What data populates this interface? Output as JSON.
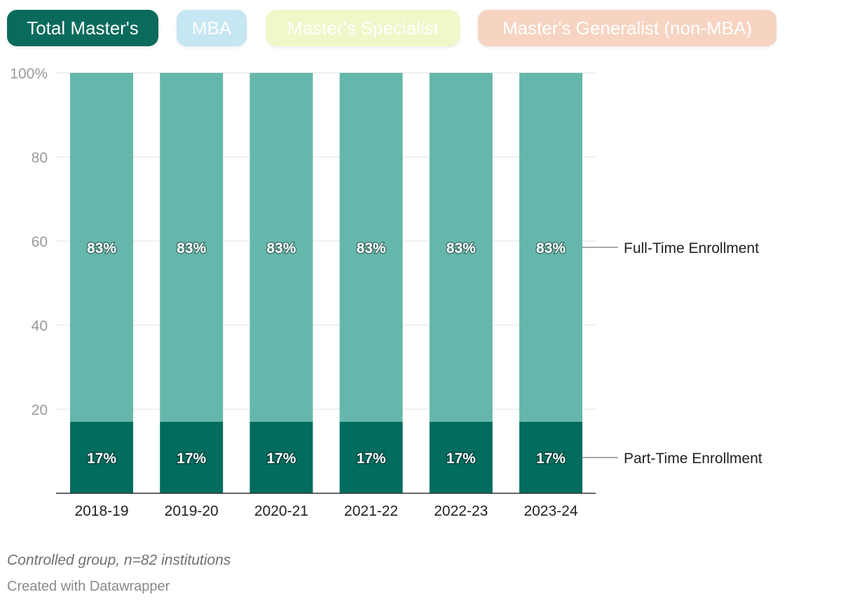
{
  "tabs": [
    {
      "label": "Total Master's",
      "color": "#0a6b5c",
      "active": true
    },
    {
      "label": "MBA",
      "color": "#c5e6f3",
      "active": false
    },
    {
      "label": "Master's Specialist",
      "color": "#eef8c8",
      "active": false
    },
    {
      "label": "Master's Generalist (non-MBA)",
      "color": "#f7d4c2",
      "active": false
    }
  ],
  "chart_data": {
    "type": "bar",
    "stacked": true,
    "categories": [
      "2018-19",
      "2019-20",
      "2020-21",
      "2021-22",
      "2022-23",
      "2023-24"
    ],
    "series": [
      {
        "name": "Part-Time Enrollment",
        "values": [
          17,
          17,
          17,
          17,
          17,
          17
        ],
        "labels": [
          "17%",
          "17%",
          "17%",
          "17%",
          "17%",
          "17%"
        ],
        "color": "#026c5e"
      },
      {
        "name": "Full-Time Enrollment",
        "values": [
          83,
          83,
          83,
          83,
          83,
          83
        ],
        "labels": [
          "83%",
          "83%",
          "83%",
          "83%",
          "83%",
          "83%"
        ],
        "color": "#66b7ab"
      }
    ],
    "yticks": [
      {
        "value": 20,
        "label": "20"
      },
      {
        "value": 40,
        "label": "40"
      },
      {
        "value": 60,
        "label": "60"
      },
      {
        "value": 80,
        "label": "80"
      },
      {
        "value": 100,
        "label": "100%"
      }
    ],
    "ylim": [
      0,
      100
    ],
    "grid": true,
    "legend": "direct labels at right"
  },
  "footer": {
    "note": "Controlled group, n=82 institutions",
    "credit": "Created with Datawrapper"
  }
}
